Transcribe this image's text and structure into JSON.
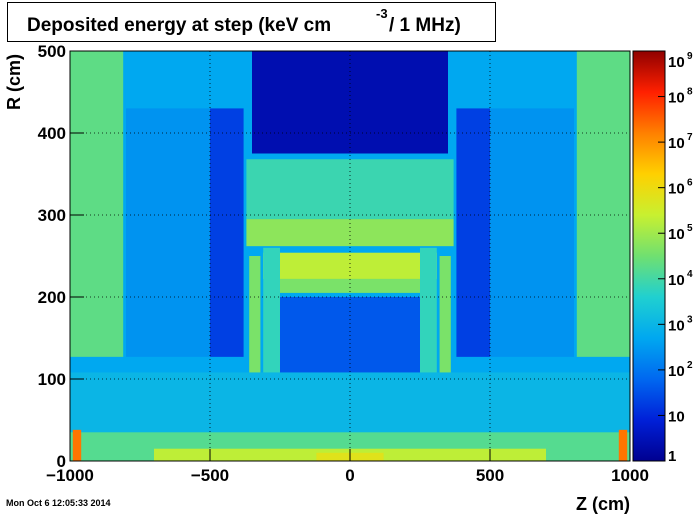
{
  "title": {
    "main": "Deposited energy at step (keV cm",
    "superscript": "-3",
    "tail": "/ 1 MHz)"
  },
  "timestamp": "Mon Oct  6 12:05:33 2014",
  "chart_data": {
    "type": "heatmap",
    "title": "Deposited energy at step (keV cm^-3 / 1 MHz)",
    "xlabel": "Z (cm)",
    "ylabel": "R (cm)",
    "xlim": [
      -1000,
      1000
    ],
    "ylim": [
      0,
      500
    ],
    "x_ticks": [
      "−1000",
      "−500",
      "0",
      "500",
      "1000"
    ],
    "x_tick_values": [
      -1000,
      -500,
      0,
      500,
      1000
    ],
    "y_ticks": [
      "0",
      "100",
      "200",
      "300",
      "400",
      "500"
    ],
    "y_tick_values": [
      0,
      100,
      200,
      300,
      400,
      500
    ],
    "grid": true,
    "colorbar": {
      "scale": "log",
      "range": [
        1,
        1000000000
      ],
      "labels": [
        {
          "base": "1",
          "exp": ""
        },
        {
          "base": "10",
          "exp": ""
        },
        {
          "base": "10",
          "exp": "2"
        },
        {
          "base": "10",
          "exp": "3"
        },
        {
          "base": "10",
          "exp": "4"
        },
        {
          "base": "10",
          "exp": "5"
        },
        {
          "base": "10",
          "exp": "6"
        },
        {
          "base": "10",
          "exp": "7"
        },
        {
          "base": "10",
          "exp": "8"
        },
        {
          "base": "10",
          "exp": "9"
        }
      ]
    },
    "regions": [
      {
        "z": [
          -1000,
          1000
        ],
        "r": [
          0,
          500
        ],
        "log10": 2.7
      },
      {
        "z": [
          -1000,
          -810
        ],
        "r": [
          127,
          500
        ],
        "log10": 4.3
      },
      {
        "z": [
          810,
          1000
        ],
        "r": [
          127,
          500
        ],
        "log10": 4.3
      },
      {
        "z": [
          -800,
          -500
        ],
        "r": [
          127,
          430
        ],
        "log10": 2.4
      },
      {
        "z": [
          500,
          800
        ],
        "r": [
          127,
          430
        ],
        "log10": 2.4
      },
      {
        "z": [
          -500,
          -380
        ],
        "r": [
          127,
          430
        ],
        "log10": 1.3
      },
      {
        "z": [
          380,
          500
        ],
        "r": [
          127,
          430
        ],
        "log10": 1.3
      },
      {
        "z": [
          -350,
          350
        ],
        "r": [
          375,
          500
        ],
        "log10": 0.4
      },
      {
        "z": [
          -370,
          370
        ],
        "r": [
          295,
          368
        ],
        "log10": 3.9
      },
      {
        "z": [
          -370,
          370
        ],
        "r": [
          262,
          295
        ],
        "log10": 4.8
      },
      {
        "z": [
          -310,
          310
        ],
        "r": [
          222,
          254
        ],
        "log10": 5.3
      },
      {
        "z": [
          -250,
          250
        ],
        "r": [
          205,
          222
        ],
        "log10": 4.6
      },
      {
        "z": [
          -250,
          250
        ],
        "r": [
          60,
          200
        ],
        "log10": 1.6
      },
      {
        "z": [
          -310,
          -250
        ],
        "r": [
          70,
          260
        ],
        "log10": 3.8
      },
      {
        "z": [
          250,
          310
        ],
        "r": [
          70,
          260
        ],
        "log10": 3.8
      },
      {
        "z": [
          -360,
          -320
        ],
        "r": [
          95,
          250
        ],
        "log10": 4.6
      },
      {
        "z": [
          320,
          360
        ],
        "r": [
          95,
          250
        ],
        "log10": 4.6
      },
      {
        "z": [
          -1000,
          1000
        ],
        "r": [
          0,
          108
        ],
        "log10": 3.0
      },
      {
        "z": [
          -1000,
          1000
        ],
        "r": [
          0,
          35
        ],
        "log10": 4.2
      },
      {
        "z": [
          -700,
          700
        ],
        "r": [
          0,
          15
        ],
        "log10": 5.3
      },
      {
        "z": [
          -990,
          -960
        ],
        "r": [
          0,
          38
        ],
        "log10": 7.3
      },
      {
        "z": [
          960,
          990
        ],
        "r": [
          0,
          38
        ],
        "log10": 7.3
      },
      {
        "z": [
          -120,
          120
        ],
        "r": [
          0,
          10
        ],
        "log10": 5.8
      }
    ]
  }
}
